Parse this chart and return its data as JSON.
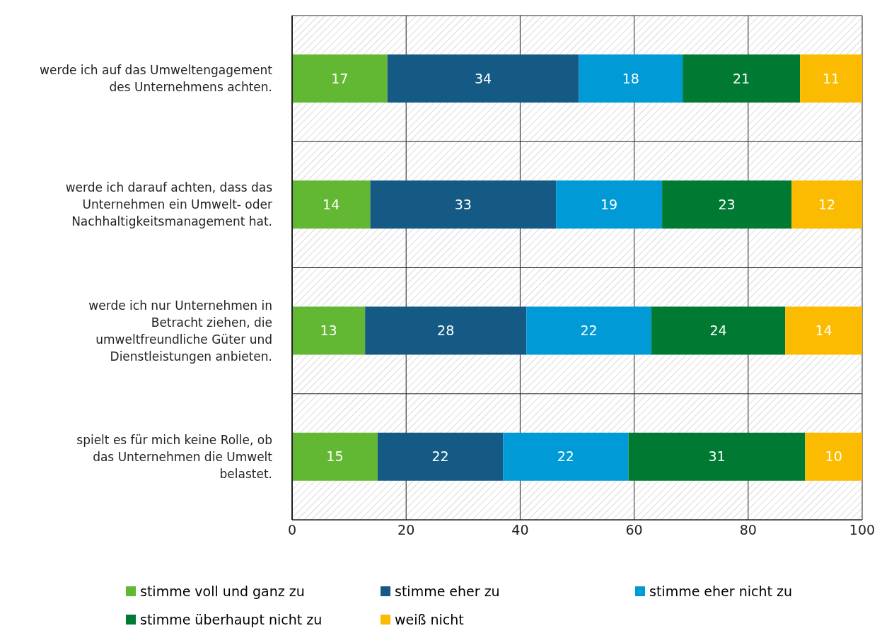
{
  "chart_data": {
    "type": "bar",
    "orientation": "horizontal",
    "stacked": true,
    "grid": true,
    "legend": "bottom",
    "categories": [
      "werde ich auf das Umweltengagement des Unternehmens achten.",
      "werde ich darauf achten, dass das Unternehmen ein Umwelt- oder Nachhaltigkeitsmanagement hat.",
      "werde ich nur Unternehmen in Betracht ziehen, die umweltfreundliche Güter und Dienstleistungen anbieten.",
      "spielt es für mich keine Rolle, ob das Unternehmen die Umwelt belastet."
    ],
    "series": [
      {
        "name": "stimme voll und ganz zu",
        "color": "#62b832",
        "values": [
          16.7,
          13.7,
          12.8,
          15
        ],
        "value_labels": [
          "17",
          "14",
          "13",
          "15"
        ]
      },
      {
        "name": "stimme eher zu",
        "color": "#145a85",
        "values": [
          33.6,
          32.6,
          28.3,
          22
        ],
        "value_labels": [
          "34",
          "33",
          "28",
          "22"
        ]
      },
      {
        "name": "stimme eher nicht zu",
        "color": "#009ad6",
        "values": [
          18.2,
          18.6,
          21.9,
          22
        ],
        "value_labels": [
          "18",
          "19",
          "22",
          "22"
        ]
      },
      {
        "name": "stimme überhaupt nicht zu",
        "color": "#007a33",
        "values": [
          20.6,
          22.7,
          23.5,
          31
        ],
        "value_labels": [
          "21",
          "23",
          "24",
          "31"
        ]
      },
      {
        "name": "weiß nicht",
        "color": "#fbbb00",
        "values": [
          10.9,
          12.4,
          13.5,
          10
        ],
        "value_labels": [
          "11",
          "12",
          "14",
          "10"
        ]
      }
    ],
    "xlim": [
      0,
      100
    ],
    "xticks": [
      0,
      20,
      40,
      60,
      80,
      100
    ]
  }
}
